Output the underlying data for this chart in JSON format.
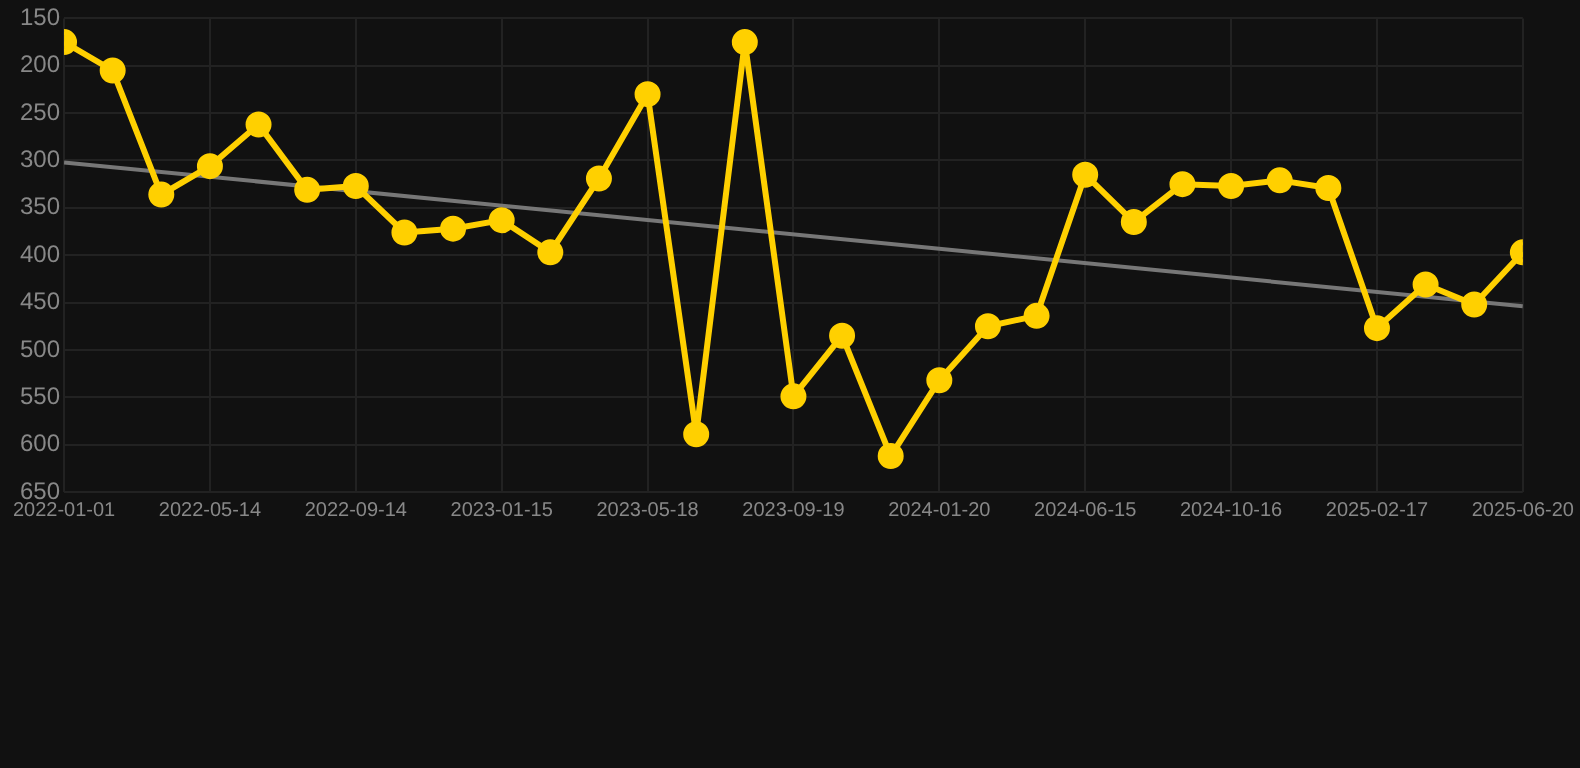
{
  "chart_data": {
    "type": "line",
    "categories": [
      "2022-01-01",
      null,
      null,
      "2022-05-14",
      null,
      null,
      "2022-09-14",
      null,
      null,
      "2023-01-15",
      null,
      null,
      "2023-05-18",
      null,
      null,
      "2023-09-19",
      null,
      null,
      "2024-01-20",
      null,
      null,
      "2024-06-15",
      null,
      null,
      "2024-10-16",
      null,
      null,
      "2025-02-17",
      null,
      null,
      "2025-06-20"
    ],
    "series": [
      {
        "color": "#ffd000",
        "values": [
          175,
          205,
          336,
          306,
          262,
          331,
          327,
          376,
          372,
          363,
          397,
          319,
          230,
          589,
          175,
          549,
          485,
          612,
          532,
          475,
          464,
          315,
          365,
          325,
          327,
          321,
          329,
          477,
          431,
          452,
          397
        ]
      },
      {
        "color": "#777777",
        "values": [
          302,
          null,
          null,
          null,
          null,
          null,
          null,
          null,
          null,
          null,
          null,
          null,
          null,
          null,
          null,
          null,
          null,
          null,
          null,
          null,
          null,
          null,
          null,
          null,
          null,
          null,
          null,
          null,
          null,
          null,
          454
        ],
        "marker": "none"
      }
    ],
    "ylim": [
      650,
      150
    ],
    "yticks": [
      150,
      200,
      250,
      300,
      350,
      400,
      450,
      500,
      550,
      600,
      650
    ],
    "grid": true,
    "marker": "circle",
    "line_style": "solid"
  }
}
